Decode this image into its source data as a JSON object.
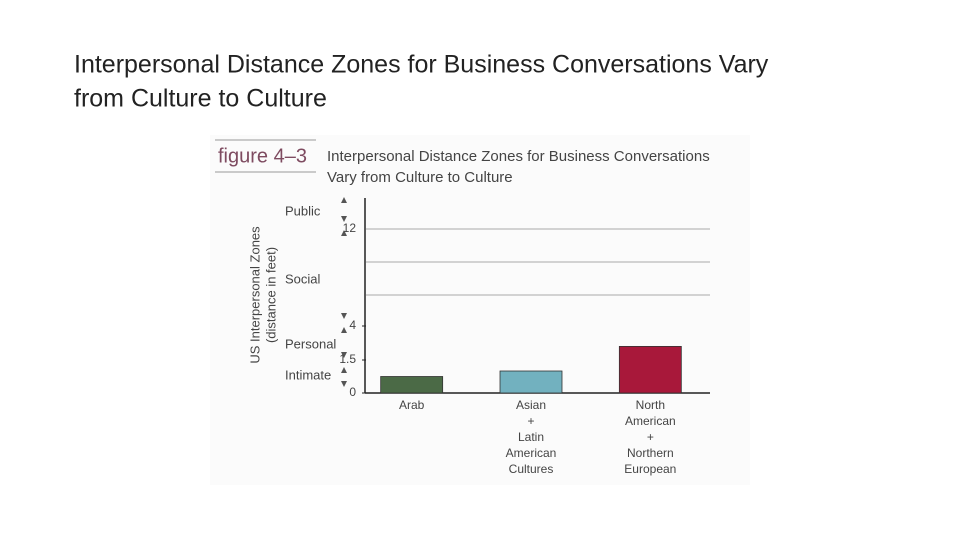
{
  "slide_title": [
    "Interpersonal Distance Zones for Business Conversations Vary",
    "from Culture to Culture"
  ],
  "chart_data": {
    "type": "bar",
    "figure_label": "figure 4–3",
    "title": [
      "Interpersonal Distance Zones for Business Conversations",
      "Vary from Culture to Culture"
    ],
    "y_label": [
      "US Interpersonal Zones",
      "(distance in feet)"
    ],
    "zones": [
      "Public",
      "Social",
      "Personal",
      "Intimate"
    ],
    "categories": [
      [
        "Arab"
      ],
      [
        "Asian",
        "+",
        "Latin",
        "American",
        "Cultures"
      ],
      [
        "North",
        "American",
        "+",
        "Northern",
        "European"
      ]
    ],
    "values": [
      0.75,
      1.0,
      2.5
    ],
    "colors": [
      "#4b6a46",
      "#72b1bf",
      "#a8183a"
    ],
    "ylim": [
      0,
      14.5
    ],
    "yticks": [
      0,
      1.5,
      4.0,
      12.0
    ],
    "grid": true
  }
}
